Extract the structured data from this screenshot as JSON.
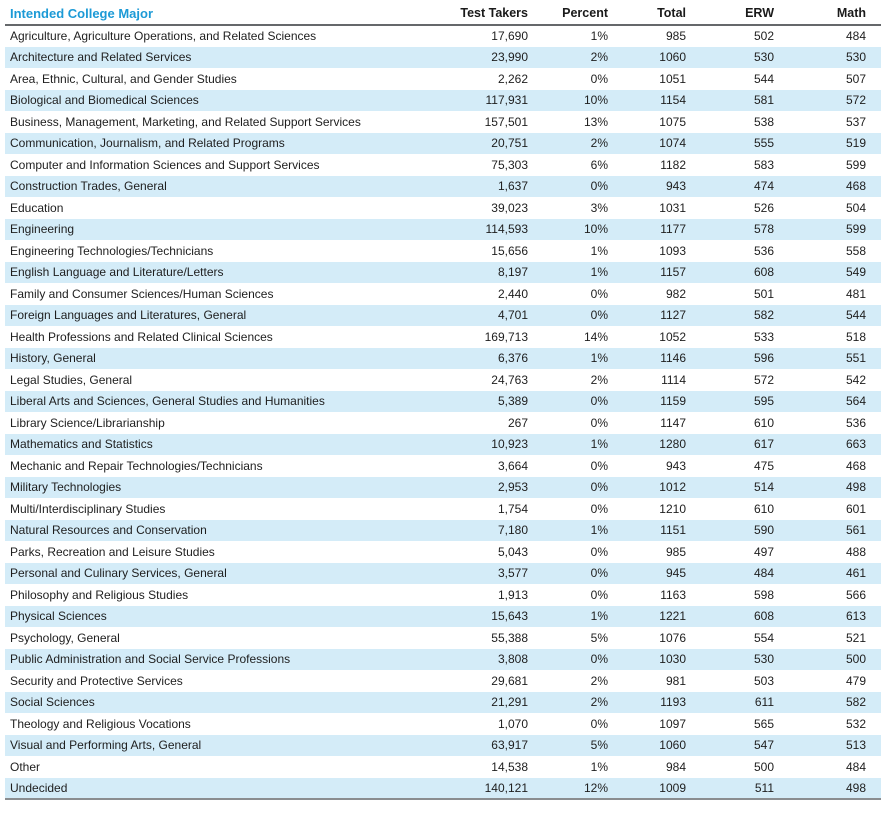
{
  "table": {
    "title": "Intended College Major",
    "columns": [
      "Test Takers",
      "Percent",
      "Total",
      "ERW",
      "Math"
    ],
    "rows": [
      {
        "major": "Agriculture, Agriculture Operations, and Related Sciences",
        "test_takers": "17,690",
        "percent": "1%",
        "total": "985",
        "erw": "502",
        "math": "484"
      },
      {
        "major": "Architecture and Related Services",
        "test_takers": "23,990",
        "percent": "2%",
        "total": "1060",
        "erw": "530",
        "math": "530"
      },
      {
        "major": "Area, Ethnic, Cultural, and Gender Studies",
        "test_takers": "2,262",
        "percent": "0%",
        "total": "1051",
        "erw": "544",
        "math": "507"
      },
      {
        "major": "Biological and Biomedical Sciences",
        "test_takers": "117,931",
        "percent": "10%",
        "total": "1154",
        "erw": "581",
        "math": "572"
      },
      {
        "major": "Business, Management, Marketing, and Related Support Services",
        "test_takers": "157,501",
        "percent": "13%",
        "total": "1075",
        "erw": "538",
        "math": "537"
      },
      {
        "major": "Communication, Journalism, and Related Programs",
        "test_takers": "20,751",
        "percent": "2%",
        "total": "1074",
        "erw": "555",
        "math": "519"
      },
      {
        "major": "Computer and Information Sciences and Support Services",
        "test_takers": "75,303",
        "percent": "6%",
        "total": "1182",
        "erw": "583",
        "math": "599"
      },
      {
        "major": "Construction Trades, General",
        "test_takers": "1,637",
        "percent": "0%",
        "total": "943",
        "erw": "474",
        "math": "468"
      },
      {
        "major": "Education",
        "test_takers": "39,023",
        "percent": "3%",
        "total": "1031",
        "erw": "526",
        "math": "504"
      },
      {
        "major": "Engineering",
        "test_takers": "114,593",
        "percent": "10%",
        "total": "1177",
        "erw": "578",
        "math": "599"
      },
      {
        "major": "Engineering Technologies/Technicians",
        "test_takers": "15,656",
        "percent": "1%",
        "total": "1093",
        "erw": "536",
        "math": "558"
      },
      {
        "major": "English Language and Literature/Letters",
        "test_takers": "8,197",
        "percent": "1%",
        "total": "1157",
        "erw": "608",
        "math": "549"
      },
      {
        "major": "Family and Consumer Sciences/Human Sciences",
        "test_takers": "2,440",
        "percent": "0%",
        "total": "982",
        "erw": "501",
        "math": "481"
      },
      {
        "major": "Foreign Languages and Literatures, General",
        "test_takers": "4,701",
        "percent": "0%",
        "total": "1127",
        "erw": "582",
        "math": "544"
      },
      {
        "major": "Health Professions and Related Clinical Sciences",
        "test_takers": "169,713",
        "percent": "14%",
        "total": "1052",
        "erw": "533",
        "math": "518"
      },
      {
        "major": "History, General",
        "test_takers": "6,376",
        "percent": "1%",
        "total": "1146",
        "erw": "596",
        "math": "551"
      },
      {
        "major": "Legal Studies, General",
        "test_takers": "24,763",
        "percent": "2%",
        "total": "1114",
        "erw": "572",
        "math": "542"
      },
      {
        "major": "Liberal Arts and Sciences, General Studies and Humanities",
        "test_takers": "5,389",
        "percent": "0%",
        "total": "1159",
        "erw": "595",
        "math": "564"
      },
      {
        "major": "Library Science/Librarianship",
        "test_takers": "267",
        "percent": "0%",
        "total": "1147",
        "erw": "610",
        "math": "536"
      },
      {
        "major": "Mathematics and Statistics",
        "test_takers": "10,923",
        "percent": "1%",
        "total": "1280",
        "erw": "617",
        "math": "663"
      },
      {
        "major": "Mechanic and Repair Technologies/Technicians",
        "test_takers": "3,664",
        "percent": "0%",
        "total": "943",
        "erw": "475",
        "math": "468"
      },
      {
        "major": "Military Technologies",
        "test_takers": "2,953",
        "percent": "0%",
        "total": "1012",
        "erw": "514",
        "math": "498"
      },
      {
        "major": "Multi/Interdisciplinary Studies",
        "test_takers": "1,754",
        "percent": "0%",
        "total": "1210",
        "erw": "610",
        "math": "601"
      },
      {
        "major": "Natural Resources and Conservation",
        "test_takers": "7,180",
        "percent": "1%",
        "total": "1151",
        "erw": "590",
        "math": "561"
      },
      {
        "major": "Parks, Recreation and Leisure Studies",
        "test_takers": "5,043",
        "percent": "0%",
        "total": "985",
        "erw": "497",
        "math": "488"
      },
      {
        "major": "Personal and Culinary Services, General",
        "test_takers": "3,577",
        "percent": "0%",
        "total": "945",
        "erw": "484",
        "math": "461"
      },
      {
        "major": "Philosophy and Religious Studies",
        "test_takers": "1,913",
        "percent": "0%",
        "total": "1163",
        "erw": "598",
        "math": "566"
      },
      {
        "major": "Physical Sciences",
        "test_takers": "15,643",
        "percent": "1%",
        "total": "1221",
        "erw": "608",
        "math": "613"
      },
      {
        "major": "Psychology, General",
        "test_takers": "55,388",
        "percent": "5%",
        "total": "1076",
        "erw": "554",
        "math": "521"
      },
      {
        "major": "Public Administration and Social Service Professions",
        "test_takers": "3,808",
        "percent": "0%",
        "total": "1030",
        "erw": "530",
        "math": "500"
      },
      {
        "major": "Security and Protective Services",
        "test_takers": "29,681",
        "percent": "2%",
        "total": "981",
        "erw": "503",
        "math": "479"
      },
      {
        "major": "Social Sciences",
        "test_takers": "21,291",
        "percent": "2%",
        "total": "1193",
        "erw": "611",
        "math": "582"
      },
      {
        "major": "Theology and Religious Vocations",
        "test_takers": "1,070",
        "percent": "0%",
        "total": "1097",
        "erw": "565",
        "math": "532"
      },
      {
        "major": "Visual and Performing Arts, General",
        "test_takers": "63,917",
        "percent": "5%",
        "total": "1060",
        "erw": "547",
        "math": "513"
      },
      {
        "major": "Other",
        "test_takers": "14,538",
        "percent": "1%",
        "total": "984",
        "erw": "500",
        "math": "484"
      },
      {
        "major": "Undecided",
        "test_takers": "140,121",
        "percent": "12%",
        "total": "1009",
        "erw": "511",
        "math": "498"
      }
    ]
  },
  "colors": {
    "title_text": "#1c9ad6",
    "row_stripe": "#d4ecf8",
    "header_rule": "#65686b",
    "bottom_rule": "#8a8d90",
    "body_text": "#1e1e1e"
  }
}
